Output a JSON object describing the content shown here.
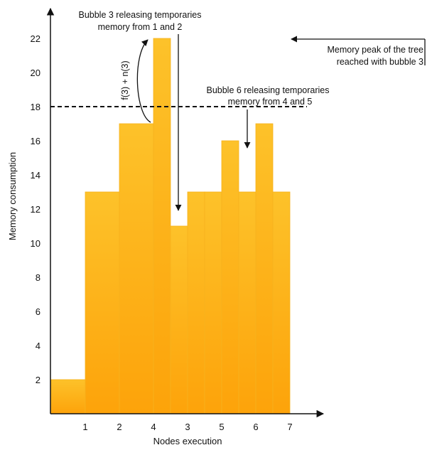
{
  "chart_data": {
    "type": "bar",
    "categories": [
      "",
      "1",
      "2",
      "4",
      "",
      "3",
      "",
      "5",
      "6",
      "",
      "7"
    ],
    "x_tick_labels": [
      "1",
      "2",
      "4",
      "3",
      "5",
      "6",
      "7"
    ],
    "values": [
      2,
      13,
      17,
      22,
      11,
      13,
      13,
      16,
      13,
      17,
      13
    ],
    "xlabel": "Nodes execution",
    "ylabel": "Memory consumption",
    "y_ticks": [
      2,
      4,
      6,
      8,
      10,
      12,
      14,
      16,
      18,
      20,
      22
    ],
    "ylim": [
      0,
      23
    ],
    "grid": false,
    "bar_color_top": "#fdc22a",
    "bar_color_bottom": "#fda30a",
    "reference_line": {
      "value": 18,
      "style": "dashed",
      "color": "#111111"
    },
    "annotations": {
      "bubble3_line1": "Bubble 3 releasing temporaries",
      "bubble3_line2": "memory from 1 and 2",
      "bubble6_line1": "Bubble 6 releasing temporaries",
      "bubble6_line2": "memory from 4 and 5",
      "peak_line1": "Memory peak of the tree",
      "peak_line2": "reached with bubble 3",
      "formula": "f(3) + n(3)"
    }
  }
}
